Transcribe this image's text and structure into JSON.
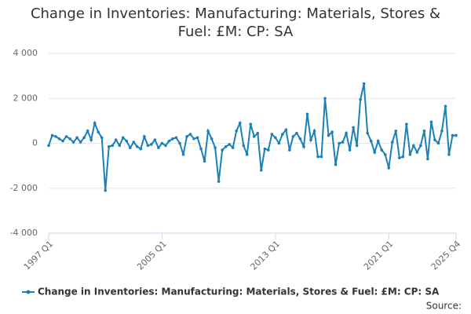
{
  "chart_data": {
    "type": "line",
    "title": "Change in Inventories: Manufacturing: Materials, Stores & Fuel: £M: CP: SA",
    "categories": [
      "1997 Q1",
      null,
      null,
      null,
      null,
      null,
      null,
      null,
      null,
      null,
      null,
      null,
      null,
      null,
      null,
      null,
      null,
      null,
      null,
      null,
      null,
      null,
      null,
      null,
      null,
      null,
      null,
      null,
      null,
      null,
      null,
      null,
      "2005 Q1",
      null,
      null,
      null,
      null,
      null,
      null,
      null,
      null,
      null,
      null,
      null,
      null,
      null,
      null,
      null,
      null,
      null,
      null,
      null,
      null,
      null,
      null,
      null,
      null,
      null,
      null,
      null,
      null,
      null,
      null,
      null,
      "2013 Q1",
      null,
      null,
      null,
      null,
      null,
      null,
      null,
      null,
      null,
      null,
      null,
      null,
      null,
      null,
      null,
      null,
      null,
      null,
      null,
      null,
      null,
      null,
      null,
      null,
      null,
      null,
      null,
      null,
      null,
      null,
      null,
      "2021 Q1",
      null,
      null,
      null,
      null,
      null,
      null,
      null,
      null,
      null,
      null,
      null,
      null,
      null,
      null,
      null,
      null,
      null,
      null,
      "2025 Q4"
    ],
    "series": [
      {
        "name": "Change in Inventories: Manufacturing: Materials, Stores & Fuel: £M: CP: SA",
        "color": "#1a80b6",
        "values": [
          -100,
          350,
          300,
          200,
          100,
          300,
          200,
          50,
          250,
          50,
          250,
          550,
          150,
          900,
          500,
          250,
          -2100,
          -150,
          -100,
          150,
          -100,
          250,
          100,
          -200,
          50,
          -150,
          -250,
          300,
          -100,
          -50,
          150,
          -200,
          0,
          -100,
          100,
          200,
          250,
          0,
          -500,
          300,
          400,
          200,
          250,
          -250,
          -800,
          550,
          200,
          -200,
          -1700,
          -300,
          -150,
          -50,
          -200,
          550,
          900,
          -100,
          -500,
          850,
          300,
          450,
          -1200,
          -250,
          -300,
          400,
          250,
          0,
          400,
          600,
          -300,
          300,
          450,
          200,
          -150,
          1300,
          150,
          550,
          -600,
          -600,
          2000,
          350,
          500,
          -950,
          0,
          50,
          450,
          -300,
          700,
          -100,
          1950,
          2650,
          450,
          100,
          -400,
          100,
          -300,
          -500,
          -1100,
          50,
          550,
          -650,
          -600,
          850,
          -500,
          -100,
          -400,
          -100,
          550,
          -700,
          950,
          150,
          0,
          550,
          1650,
          -500,
          350,
          350
        ]
      }
    ],
    "ylim": [
      -4000,
      4000
    ],
    "yticks": [
      {
        "value": -4000,
        "label": "-4 000"
      },
      {
        "value": -2000,
        "label": "-2 000"
      },
      0,
      {
        "value": 2000,
        "label": "2 000"
      },
      {
        "value": 4000,
        "label": "4 000"
      }
    ],
    "grid": true,
    "legend": "bottom",
    "source": "Source:"
  }
}
